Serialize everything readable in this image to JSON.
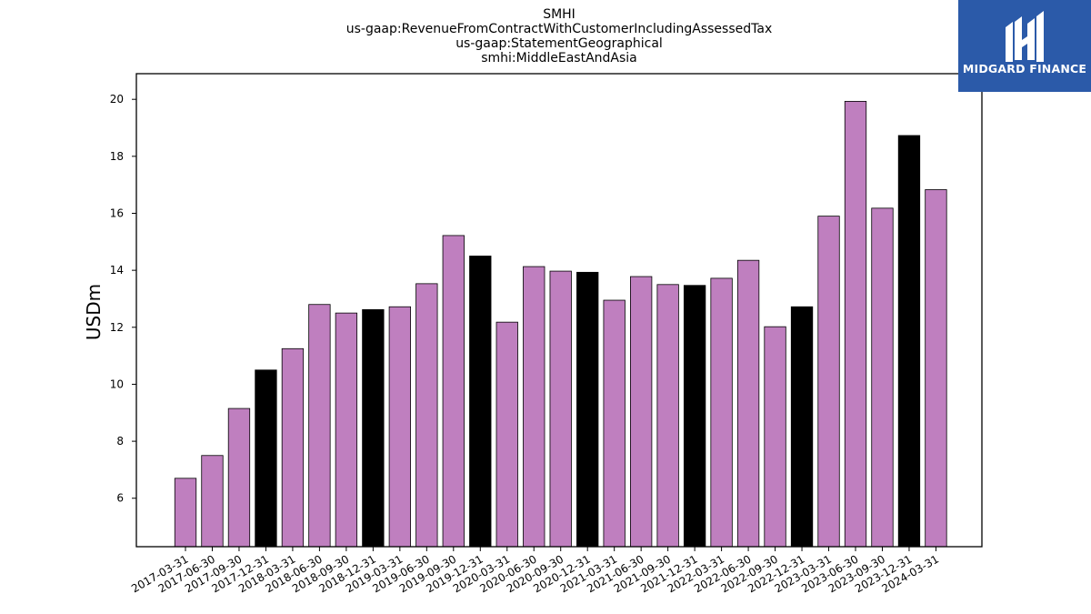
{
  "title_lines": [
    "SMHI",
    "us-gaap:RevenueFromContractWithCustomerIncludingAssessedTax",
    "us-gaap:StatementGeographical",
    "smhi:MiddleEastAndAsia"
  ],
  "logo": {
    "text": "MIDGARD FINANCE"
  },
  "colors": {
    "bar": "#bf7fbf",
    "bar_highlight": "#000000",
    "edge": "#000000",
    "logo_bg": "#2b5aa9"
  },
  "chart_data": {
    "type": "bar",
    "title": "SMHI\nus-gaap:RevenueFromContractWithCustomerIncludingAssessedTax\nus-gaap:StatementGeographical\nsmhi:MiddleEastAndAsia",
    "xlabel": "",
    "ylabel": "USDm",
    "ylim": [
      4.3,
      20.9
    ],
    "yticks": [
      6,
      8,
      10,
      12,
      14,
      16,
      18,
      20
    ],
    "grid": false,
    "categories": [
      "2017-03-31",
      "2017-06-30",
      "2017-09-30",
      "2017-12-31",
      "2018-03-31",
      "2018-06-30",
      "2018-09-30",
      "2018-12-31",
      "2019-03-31",
      "2019-06-30",
      "2019-09-30",
      "2019-12-31",
      "2020-03-31",
      "2020-06-30",
      "2020-09-30",
      "2020-12-31",
      "2021-03-31",
      "2021-06-30",
      "2021-09-30",
      "2021-12-31",
      "2022-03-31",
      "2022-06-30",
      "2022-09-30",
      "2022-12-31",
      "2023-03-31",
      "2023-06-30",
      "2023-09-30",
      "2023-12-31",
      "2024-03-31"
    ],
    "values": [
      6.7,
      7.5,
      9.15,
      10.5,
      11.25,
      12.8,
      12.5,
      12.62,
      12.72,
      13.53,
      15.22,
      14.5,
      12.18,
      14.13,
      13.97,
      13.93,
      12.95,
      13.78,
      13.5,
      13.47,
      13.72,
      14.35,
      12.02,
      12.72,
      15.9,
      19.93,
      16.18,
      18.73,
      16.83
    ],
    "highlight": [
      false,
      false,
      false,
      true,
      false,
      false,
      false,
      true,
      false,
      false,
      false,
      true,
      false,
      false,
      false,
      true,
      false,
      false,
      false,
      true,
      false,
      false,
      false,
      true,
      false,
      false,
      false,
      true,
      false
    ]
  }
}
